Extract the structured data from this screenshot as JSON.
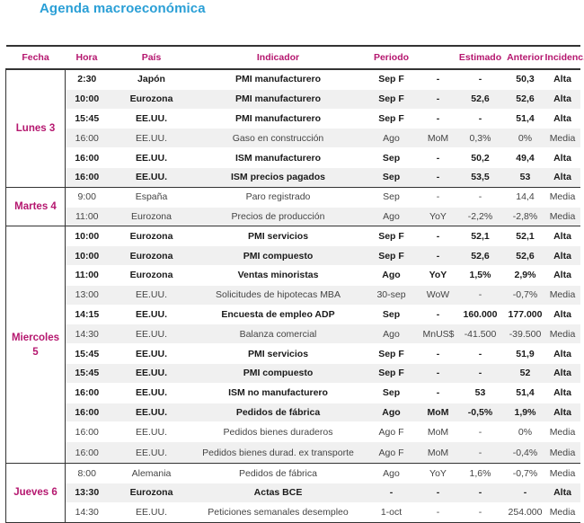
{
  "title": "Agenda macroeconómica",
  "headers": [
    "Fecha",
    "Hora",
    "País",
    "Indicador",
    "Periodo",
    "",
    "Estimado",
    "Anterior",
    "Incidenc."
  ],
  "groups": [
    {
      "date": "Lunes 3",
      "rows": [
        {
          "hora": "2:30",
          "pais": "Japón",
          "indicador": "PMI manufacturero",
          "periodo": "Sep F",
          "tipo": "-",
          "estimado": "-",
          "anterior": "50,3",
          "incidencia": "Alta"
        },
        {
          "hora": "10:00",
          "pais": "Eurozona",
          "indicador": "PMI manufacturero",
          "periodo": "Sep F",
          "tipo": "-",
          "estimado": "52,6",
          "anterior": "52,6",
          "incidencia": "Alta"
        },
        {
          "hora": "15:45",
          "pais": "EE.UU.",
          "indicador": "PMI manufacturero",
          "periodo": "Sep F",
          "tipo": "-",
          "estimado": "-",
          "anterior": "51,4",
          "incidencia": "Alta"
        },
        {
          "hora": "16:00",
          "pais": "EE.UU.",
          "indicador": "Gaso en construcción",
          "periodo": "Ago",
          "tipo": "MoM",
          "estimado": "0,3%",
          "anterior": "0%",
          "incidencia": "Media"
        },
        {
          "hora": "16:00",
          "pais": "EE.UU.",
          "indicador": "ISM manufacturero",
          "periodo": "Sep",
          "tipo": "-",
          "estimado": "50,2",
          "anterior": "49,4",
          "incidencia": "Alta"
        },
        {
          "hora": "16:00",
          "pais": "EE.UU.",
          "indicador": "ISM precios pagados",
          "periodo": "Sep",
          "tipo": "-",
          "estimado": "53,5",
          "anterior": "53",
          "incidencia": "Alta"
        }
      ]
    },
    {
      "date": "Martes 4",
      "rows": [
        {
          "hora": "9:00",
          "pais": "España",
          "indicador": "Paro registrado",
          "periodo": "Sep",
          "tipo": "-",
          "estimado": "-",
          "anterior": "14,4",
          "incidencia": "Media"
        },
        {
          "hora": "11:00",
          "pais": "Eurozona",
          "indicador": "Precios de producción",
          "periodo": "Ago",
          "tipo": "YoY",
          "estimado": "-2,2%",
          "anterior": "-2,8%",
          "incidencia": "Media"
        }
      ]
    },
    {
      "date": "Miercoles 5",
      "rows": [
        {
          "hora": "10:00",
          "pais": "Eurozona",
          "indicador": "PMI servicios",
          "periodo": "Sep F",
          "tipo": "-",
          "estimado": "52,1",
          "anterior": "52,1",
          "incidencia": "Alta"
        },
        {
          "hora": "10:00",
          "pais": "Eurozona",
          "indicador": "PMI compuesto",
          "periodo": "Sep F",
          "tipo": "-",
          "estimado": "52,6",
          "anterior": "52,6",
          "incidencia": "Alta"
        },
        {
          "hora": "11:00",
          "pais": "Eurozona",
          "indicador": "Ventas minoristas",
          "periodo": "Ago",
          "tipo": "YoY",
          "estimado": "1,5%",
          "anterior": "2,9%",
          "incidencia": "Alta"
        },
        {
          "hora": "13:00",
          "pais": "EE.UU.",
          "indicador": "Solicitudes de hipotecas MBA",
          "periodo": "30-sep",
          "tipo": "WoW",
          "estimado": "-",
          "anterior": "-0,7%",
          "incidencia": "Media"
        },
        {
          "hora": "14:15",
          "pais": "EE.UU.",
          "indicador": "Encuesta de empleo ADP",
          "periodo": "Sep",
          "tipo": "-",
          "estimado": "160.000",
          "anterior": "177.000",
          "incidencia": "Alta"
        },
        {
          "hora": "14:30",
          "pais": "EE.UU.",
          "indicador": "Balanza comercial",
          "periodo": "Ago",
          "tipo": "MnUS$",
          "estimado": "-41.500",
          "anterior": "-39.500",
          "incidencia": "Media"
        },
        {
          "hora": "15:45",
          "pais": "EE.UU.",
          "indicador": "PMI servicios",
          "periodo": "Sep F",
          "tipo": "-",
          "estimado": "-",
          "anterior": "51,9",
          "incidencia": "Alta"
        },
        {
          "hora": "15:45",
          "pais": "EE.UU.",
          "indicador": "PMI compuesto",
          "periodo": "Sep F",
          "tipo": "-",
          "estimado": "-",
          "anterior": "52",
          "incidencia": "Alta"
        },
        {
          "hora": "16:00",
          "pais": "EE.UU.",
          "indicador": "ISM no manufacturero",
          "periodo": "Sep",
          "tipo": "-",
          "estimado": "53",
          "anterior": "51,4",
          "incidencia": "Alta"
        },
        {
          "hora": "16:00",
          "pais": "EE.UU.",
          "indicador": "Pedidos de fábrica",
          "periodo": "Ago",
          "tipo": "MoM",
          "estimado": "-0,5%",
          "anterior": "1,9%",
          "incidencia": "Alta"
        },
        {
          "hora": "16:00",
          "pais": "EE.UU.",
          "indicador": "Pedidos bienes duraderos",
          "periodo": "Ago F",
          "tipo": "MoM",
          "estimado": "-",
          "anterior": "0%",
          "incidencia": "Media"
        },
        {
          "hora": "16:00",
          "pais": "EE.UU.",
          "indicador": "Pedidos bienes durad. ex transporte",
          "periodo": "Ago F",
          "tipo": "MoM",
          "estimado": "-",
          "anterior": "-0,4%",
          "incidencia": "Media",
          "tall": true
        }
      ]
    },
    {
      "date": "Jueves 6",
      "rows": [
        {
          "hora": "8:00",
          "pais": "Alemania",
          "indicador": "Pedidos de fábrica",
          "periodo": "Ago",
          "tipo": "YoY",
          "estimado": "1,6%",
          "anterior": "-0,7%",
          "incidencia": "Media"
        },
        {
          "hora": "13:30",
          "pais": "Eurozona",
          "indicador": "Actas BCE",
          "periodo": "-",
          "tipo": "-",
          "estimado": "-",
          "anterior": "-",
          "incidencia": "Alta"
        },
        {
          "hora": "14:30",
          "pais": "EE.UU.",
          "indicador": "Peticiones semanales desempleo",
          "periodo": "1-oct",
          "tipo": "-",
          "estimado": "-",
          "anterior": "254.000",
          "incidencia": "Media"
        }
      ]
    }
  ]
}
